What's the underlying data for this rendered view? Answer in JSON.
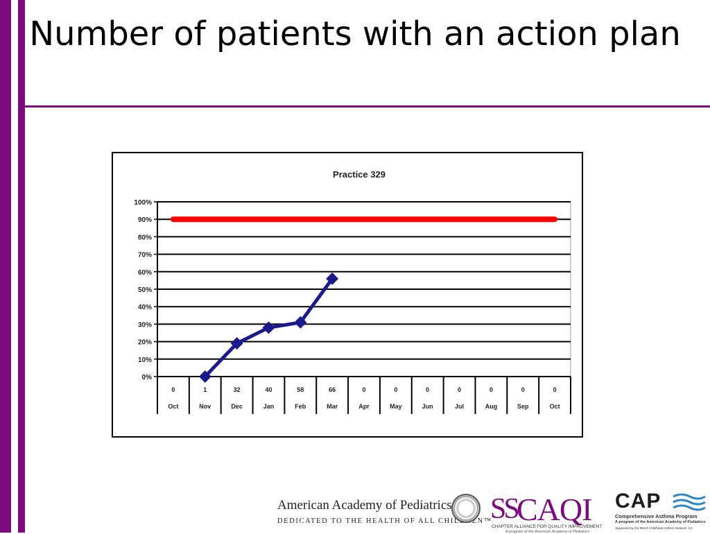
{
  "slide": {
    "title": "Number of patients with an action plan",
    "colors": {
      "accent": "#7a0a7e",
      "target_line": "#ff0000",
      "series_line": "#1a1a8c"
    }
  },
  "chart_data": {
    "type": "line",
    "title": "Practice 329",
    "ylim": [
      0,
      100
    ],
    "y_ticks": [
      "0%",
      "10%",
      "20%",
      "30%",
      "40%",
      "50%",
      "60%",
      "70%",
      "80%",
      "90%",
      "100%"
    ],
    "categories": [
      "Oct",
      "Nov",
      "Dec",
      "Jan",
      "Feb",
      "Mar",
      "Apr",
      "May",
      "Jun",
      "Jul",
      "Aug",
      "Sep",
      "Oct"
    ],
    "counts": [
      "0",
      "1",
      "32",
      "40",
      "58",
      "66",
      "0",
      "0",
      "0",
      "0",
      "0",
      "0",
      "0"
    ],
    "series": [
      {
        "values": [
          null,
          0,
          19,
          28,
          31,
          56,
          null,
          null,
          null,
          null,
          null,
          null,
          null
        ],
        "color": "#1a1a8c"
      },
      {
        "values": [
          90,
          90,
          90,
          90,
          90,
          90,
          90,
          90,
          90,
          90,
          90,
          90,
          90
        ],
        "color": "#ff0000"
      }
    ],
    "grid": true
  },
  "footer": {
    "aap_name": "American Academy of Pediatrics",
    "aap_tagline": "DEDICATED TO THE HEALTH OF ALL CHILDREN™",
    "caqi_mark": "SS",
    "caqi_name": "CAQI",
    "caqi_full": "CHAPTER ALLIANCE FOR QUALITY IMPROVEMENT",
    "caqi_sub": "A program of the American Academy of Pediatrics",
    "cap_name": "CAP",
    "cap_full": "Comprehensive Asthma Program",
    "cap_sub": "A program of the American Academy of Pediatrics",
    "cap_support": "Supported by the Merck Childhood Asthma Network, Inc."
  }
}
